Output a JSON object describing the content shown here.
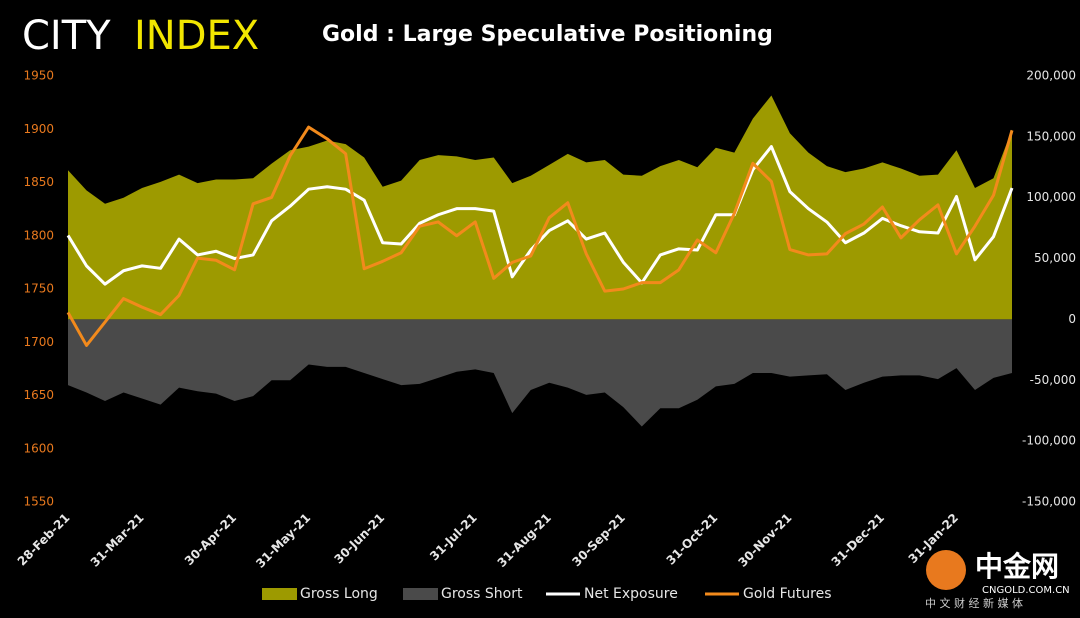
{
  "chart_data": {
    "type": "combo",
    "title": "Gold : Large Speculative Positioning",
    "annotations": [
      "CITY",
      "INDEX",
      "中金网",
      "CNGOLD.COM.CN",
      "中 文 财 经 新 媒 体"
    ],
    "categories": [
      "28-Feb-21",
      null,
      null,
      null,
      "31-Mar-21",
      null,
      null,
      null,
      null,
      "30-Apr-21",
      null,
      null,
      null,
      "31-May-21",
      null,
      null,
      null,
      "30-Jun-21",
      null,
      null,
      null,
      null,
      "31-Jul-21",
      null,
      null,
      null,
      "31-Aug-21",
      null,
      null,
      null,
      "30-Sep-21",
      null,
      null,
      null,
      null,
      "31-Oct-21",
      null,
      null,
      null,
      "30-Nov-21",
      null,
      null,
      null,
      null,
      "31-Dec-21",
      null,
      null,
      null,
      "31-Jan-22",
      null,
      null,
      null
    ],
    "ylim": [
      1550,
      1950
    ],
    "yticks": [
      1550,
      1600,
      1650,
      1700,
      1750,
      1800,
      1850,
      1900,
      1950
    ],
    "y2lim": [
      -150000,
      200000
    ],
    "y2ticks": [
      {
        "value": -150000,
        "label": "-150,000"
      },
      {
        "value": -100000,
        "label": "-100,000"
      },
      {
        "value": -50000,
        "label": "-50,000"
      },
      0,
      {
        "value": 50000,
        "label": "50,000"
      },
      {
        "value": 100000,
        "label": "100,000"
      },
      {
        "value": 150000,
        "label": "150,000"
      },
      {
        "value": 200000,
        "label": "200,000"
      }
    ],
    "legend": "bottom",
    "series": [
      {
        "name": "Gross Long",
        "type": "area",
        "axis": "y2",
        "color": "#9d9a00",
        "values": [
          122600,
          106000,
          95000,
          100000,
          108000,
          113000,
          119000,
          112000,
          115000,
          115000,
          116000,
          128000,
          139000,
          142000,
          147000,
          144000,
          133000,
          109000,
          114000,
          131000,
          135000,
          134000,
          131000,
          133000,
          112000,
          118000,
          127000,
          136000,
          129000,
          131000,
          119000,
          118000,
          126000,
          131000,
          125000,
          141000,
          137000,
          165000,
          184000,
          153000,
          137000,
          126000,
          121000,
          124000,
          129000,
          124000,
          118000,
          119000,
          139000,
          108000,
          116000,
          156000
        ]
      },
      {
        "name": "Gross Short",
        "type": "area",
        "axis": "y2",
        "color": "#4a4a4a",
        "values": [
          -54000,
          -60000,
          -67000,
          -60000,
          -65000,
          -70000,
          -56000,
          -59000,
          -61000,
          -67000,
          -63000,
          -50000,
          -50000,
          -37000,
          -39000,
          -39000,
          -44000,
          -49000,
          -54000,
          -53000,
          -48000,
          -43000,
          -41000,
          -44000,
          -77000,
          -58000,
          -52000,
          -56000,
          -62000,
          -60000,
          -72000,
          -88000,
          -73000,
          -73000,
          -66000,
          -55000,
          -53000,
          -44000,
          -44000,
          -47000,
          -46000,
          -45000,
          -58000,
          -52000,
          -47000,
          -46000,
          -46000,
          -49000,
          -40000,
          -58000,
          -48000,
          -44000
        ]
      },
      {
        "name": "Net Exposure",
        "type": "line",
        "axis": "y2",
        "color": "#ffffff",
        "values": [
          69000,
          44000,
          29000,
          40000,
          44000,
          42000,
          66000,
          53000,
          56000,
          50000,
          53000,
          81000,
          93000,
          107000,
          109000,
          107000,
          98000,
          63000,
          62000,
          79000,
          86000,
          91000,
          91000,
          89000,
          35000,
          57000,
          73000,
          81000,
          66000,
          71000,
          47000,
          30000,
          53000,
          58000,
          57000,
          86000,
          86000,
          123000,
          142000,
          105000,
          91000,
          80000,
          63000,
          71000,
          83000,
          77000,
          72000,
          71000,
          101000,
          49000,
          68000,
          108000
        ]
      },
      {
        "name": "Gold Futures",
        "type": "line",
        "axis": "y",
        "color": "#f28a1c",
        "values": [
          1728,
          1697,
          1719,
          1741,
          1733,
          1726,
          1744,
          1779,
          1777,
          1768,
          1830,
          1836,
          1875,
          1902,
          1891,
          1877,
          1769,
          1776,
          1784,
          1809,
          1813,
          1800,
          1813,
          1760,
          1775,
          1781,
          1817,
          1831,
          1783,
          1748,
          1750,
          1756,
          1756,
          1768,
          1796,
          1784,
          1821,
          1868,
          1851,
          1787,
          1782,
          1783,
          1802,
          1811,
          1827,
          1798,
          1815,
          1829,
          1783,
          1809,
          1838,
          1899
        ]
      }
    ]
  }
}
